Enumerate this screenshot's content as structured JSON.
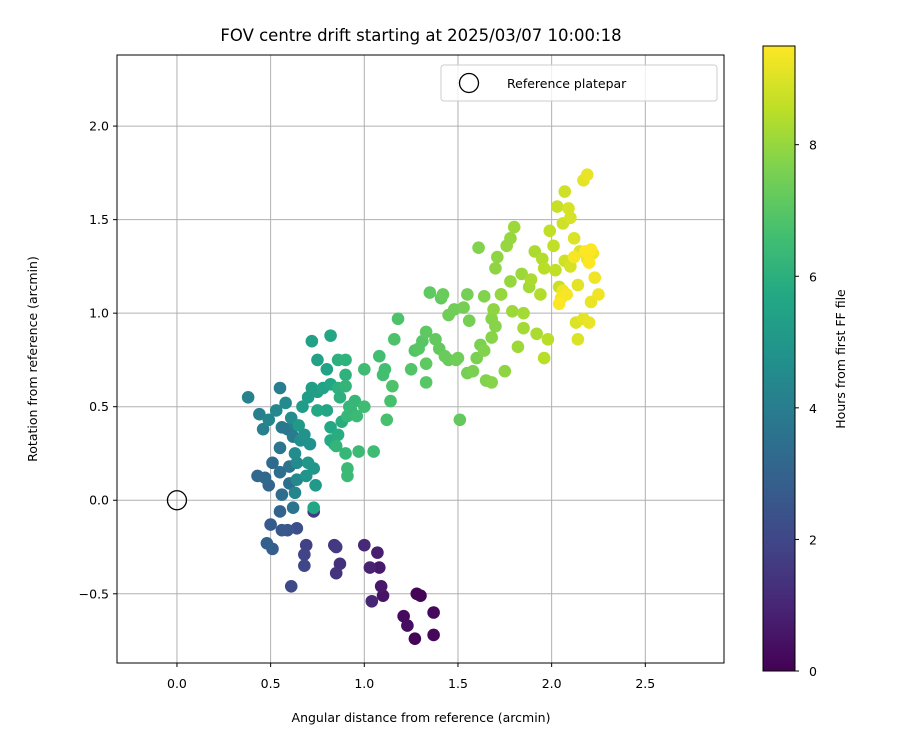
{
  "chart_data": {
    "type": "scatter",
    "title": "FOV centre drift starting at 2025/03/07 10:00:18",
    "xlabel": "Angular distance from reference (arcmin)",
    "ylabel": "Rotation from reference (arcmin)",
    "xlim": [
      -0.32,
      2.92
    ],
    "ylim": [
      -0.87,
      2.38
    ],
    "x_ticks": [
      "0.0",
      "0.5",
      "1.0",
      "1.5",
      "2.0",
      "2.5"
    ],
    "x_tick_values": [
      0,
      0.5,
      1.0,
      1.5,
      2.0,
      2.5
    ],
    "y_ticks": [
      "−0.5",
      "0.0",
      "0.5",
      "1.0",
      "1.5",
      "2.0"
    ],
    "y_tick_values": [
      -0.5,
      0,
      0.5,
      1.0,
      1.5,
      2.0
    ],
    "grid": true,
    "legend": {
      "position": "top-right",
      "entries": [
        "Reference platepar"
      ]
    },
    "reference_point": {
      "x": 0.0,
      "y": 0.0,
      "label": "Reference platepar"
    },
    "colorbar": {
      "label": "Hours from first FF file",
      "min": 0,
      "max": 9.5,
      "ticks": [
        "0",
        "2",
        "4",
        "6",
        "8"
      ],
      "tick_values": [
        0,
        2,
        4,
        6,
        8
      ],
      "colormap": "viridis"
    },
    "points": [
      [
        1.3,
        -0.51,
        0.1
      ],
      [
        1.28,
        -0.5,
        0.1
      ],
      [
        1.27,
        -0.74,
        0.1
      ],
      [
        1.37,
        -0.72,
        0.2
      ],
      [
        1.37,
        -0.6,
        0.2
      ],
      [
        1.21,
        -0.62,
        0.3
      ],
      [
        1.23,
        -0.67,
        0.35
      ],
      [
        1.1,
        -0.51,
        0.5
      ],
      [
        1.09,
        -0.46,
        0.6
      ],
      [
        1.08,
        -0.36,
        0.7
      ],
      [
        1.07,
        -0.28,
        0.8
      ],
      [
        1.03,
        -0.36,
        0.9
      ],
      [
        1.04,
        -0.54,
        1.0
      ],
      [
        1.0,
        -0.24,
        1.1
      ],
      [
        0.87,
        -0.34,
        1.3
      ],
      [
        0.85,
        -0.39,
        1.4
      ],
      [
        0.84,
        -0.24,
        1.5
      ],
      [
        0.85,
        -0.25,
        1.6
      ],
      [
        0.73,
        -0.06,
        1.7
      ],
      [
        0.69,
        -0.24,
        1.8
      ],
      [
        0.68,
        -0.29,
        1.9
      ],
      [
        0.68,
        -0.35,
        2.0
      ],
      [
        0.61,
        -0.46,
        2.1
      ],
      [
        0.64,
        -0.15,
        2.3
      ],
      [
        0.59,
        -0.16,
        2.5
      ],
      [
        0.56,
        -0.16,
        2.6
      ],
      [
        0.5,
        -0.13,
        2.7
      ],
      [
        0.51,
        -0.26,
        2.8
      ],
      [
        0.48,
        -0.23,
        2.9
      ],
      [
        0.55,
        -0.06,
        3.0
      ],
      [
        0.49,
        0.08,
        3.1
      ],
      [
        0.43,
        0.13,
        3.2
      ],
      [
        0.47,
        0.12,
        3.2
      ],
      [
        0.51,
        0.2,
        3.3
      ],
      [
        0.55,
        0.15,
        3.4
      ],
      [
        0.56,
        0.03,
        3.4
      ],
      [
        0.6,
        0.09,
        3.5
      ],
      [
        0.62,
        -0.04,
        3.6
      ],
      [
        0.6,
        0.18,
        3.6
      ],
      [
        0.55,
        0.28,
        3.7
      ],
      [
        0.56,
        0.39,
        3.8
      ],
      [
        0.59,
        0.38,
        3.8
      ],
      [
        0.62,
        0.34,
        3.9
      ],
      [
        0.63,
        0.4,
        4.0
      ],
      [
        0.55,
        0.6,
        4.0
      ],
      [
        0.46,
        0.38,
        4.1
      ],
      [
        0.44,
        0.46,
        4.1
      ],
      [
        0.38,
        0.55,
        4.2
      ],
      [
        0.49,
        0.43,
        4.3
      ],
      [
        0.53,
        0.48,
        4.4
      ],
      [
        0.58,
        0.52,
        4.5
      ],
      [
        0.61,
        0.44,
        4.6
      ],
      [
        0.63,
        0.04,
        4.3
      ],
      [
        0.64,
        0.11,
        4.4
      ],
      [
        0.64,
        0.2,
        4.5
      ],
      [
        0.63,
        0.25,
        4.6
      ],
      [
        0.66,
        0.32,
        4.7
      ],
      [
        0.68,
        0.35,
        4.8
      ],
      [
        0.71,
        0.3,
        4.8
      ],
      [
        0.69,
        0.13,
        4.9
      ],
      [
        0.7,
        0.2,
        5.0
      ],
      [
        0.73,
        0.17,
        5.0
      ],
      [
        0.74,
        0.08,
        5.1
      ],
      [
        0.65,
        0.4,
        5.1
      ],
      [
        0.67,
        0.5,
        5.2
      ],
      [
        0.7,
        0.55,
        5.2
      ],
      [
        0.72,
        0.6,
        5.3
      ],
      [
        0.75,
        0.58,
        5.3
      ],
      [
        0.72,
        0.85,
        5.4
      ],
      [
        0.75,
        0.75,
        5.4
      ],
      [
        0.78,
        0.6,
        5.5
      ],
      [
        0.8,
        0.7,
        5.5
      ],
      [
        0.82,
        0.88,
        5.6
      ],
      [
        0.82,
        0.62,
        5.6
      ],
      [
        0.8,
        0.48,
        5.6
      ],
      [
        0.75,
        0.48,
        5.7
      ],
      [
        0.73,
        -0.04,
        5.6
      ],
      [
        0.82,
        0.39,
        5.7
      ],
      [
        0.82,
        0.32,
        5.8
      ],
      [
        0.84,
        0.3,
        5.8
      ],
      [
        0.86,
        0.35,
        5.9
      ],
      [
        0.88,
        0.42,
        5.9
      ],
      [
        0.87,
        0.55,
        6.0
      ],
      [
        0.86,
        0.6,
        6.0
      ],
      [
        0.86,
        0.75,
        6.0
      ],
      [
        0.9,
        0.75,
        6.1
      ],
      [
        0.9,
        0.67,
        6.1
      ],
      [
        0.9,
        0.61,
        6.2
      ],
      [
        0.92,
        0.5,
        6.2
      ],
      [
        0.91,
        0.45,
        6.3
      ],
      [
        0.93,
        0.48,
        6.3
      ],
      [
        0.95,
        0.53,
        6.3
      ],
      [
        0.96,
        0.45,
        6.4
      ],
      [
        0.97,
        0.26,
        6.4
      ],
      [
        0.9,
        0.25,
        6.3
      ],
      [
        0.91,
        0.17,
        6.4
      ],
      [
        0.91,
        0.13,
        6.4
      ],
      [
        0.85,
        0.29,
        6.2
      ],
      [
        1.0,
        0.5,
        6.5
      ],
      [
        1.05,
        0.26,
        6.5
      ],
      [
        1.0,
        0.7,
        6.5
      ],
      [
        1.08,
        0.77,
        6.6
      ],
      [
        1.1,
        0.67,
        6.6
      ],
      [
        1.11,
        0.7,
        6.6
      ],
      [
        1.12,
        0.43,
        6.7
      ],
      [
        1.14,
        0.53,
        6.7
      ],
      [
        1.15,
        0.61,
        6.8
      ],
      [
        1.16,
        0.86,
        6.8
      ],
      [
        1.18,
        0.97,
        6.8
      ],
      [
        1.25,
        0.7,
        6.9
      ],
      [
        1.27,
        0.8,
        6.9
      ],
      [
        1.29,
        0.81,
        7.0
      ],
      [
        1.31,
        0.85,
        7.0
      ],
      [
        1.33,
        0.63,
        7.0
      ],
      [
        1.33,
        0.9,
        7.1
      ],
      [
        1.35,
        1.11,
        7.1
      ],
      [
        1.33,
        0.73,
        7.1
      ],
      [
        1.38,
        0.86,
        7.2
      ],
      [
        1.4,
        0.81,
        7.2
      ],
      [
        1.41,
        1.08,
        7.2
      ],
      [
        1.42,
        1.1,
        7.3
      ],
      [
        1.43,
        0.77,
        7.3
      ],
      [
        1.45,
        0.75,
        7.3
      ],
      [
        1.45,
        0.99,
        7.4
      ],
      [
        1.49,
        0.75,
        7.4
      ],
      [
        1.5,
        0.76,
        7.4
      ],
      [
        1.48,
        1.02,
        7.4
      ],
      [
        1.53,
        1.03,
        7.5
      ],
      [
        1.51,
        0.43,
        7.2
      ],
      [
        1.55,
        1.1,
        7.5
      ],
      [
        1.56,
        0.96,
        7.5
      ],
      [
        1.55,
        0.68,
        7.5
      ],
      [
        1.58,
        0.69,
        7.6
      ],
      [
        1.6,
        0.76,
        7.6
      ],
      [
        1.62,
        0.83,
        7.6
      ],
      [
        1.64,
        0.8,
        7.7
      ],
      [
        1.61,
        1.35,
        7.7
      ],
      [
        1.64,
        1.09,
        7.7
      ],
      [
        1.65,
        0.64,
        7.7
      ],
      [
        1.68,
        0.63,
        7.8
      ],
      [
        1.68,
        0.87,
        7.8
      ],
      [
        1.68,
        0.97,
        7.8
      ],
      [
        1.7,
        0.93,
        7.8
      ],
      [
        1.69,
        1.02,
        7.9
      ],
      [
        1.7,
        1.24,
        7.9
      ],
      [
        1.71,
        1.3,
        7.9
      ],
      [
        1.73,
        1.1,
        7.9
      ],
      [
        1.73,
        1.1,
        8.0
      ],
      [
        1.75,
        0.69,
        7.9
      ],
      [
        1.76,
        1.36,
        8.0
      ],
      [
        1.78,
        1.4,
        8.0
      ],
      [
        1.78,
        1.17,
        8.0
      ],
      [
        1.8,
        1.46,
        8.1
      ],
      [
        1.79,
        1.01,
        8.1
      ],
      [
        1.82,
        0.82,
        8.1
      ],
      [
        1.84,
        1.21,
        8.1
      ],
      [
        1.85,
        0.92,
        8.2
      ],
      [
        1.85,
        1.0,
        8.2
      ],
      [
        1.88,
        1.14,
        8.2
      ],
      [
        1.89,
        1.18,
        8.3
      ],
      [
        1.91,
        1.33,
        8.3
      ],
      [
        1.92,
        0.89,
        8.3
      ],
      [
        1.94,
        1.1,
        8.4
      ],
      [
        1.95,
        1.29,
        8.4
      ],
      [
        1.96,
        1.24,
        8.5
      ],
      [
        1.96,
        0.76,
        8.5
      ],
      [
        1.98,
        0.86,
        8.5
      ],
      [
        1.99,
        1.44,
        8.6
      ],
      [
        2.01,
        1.36,
        8.6
      ],
      [
        2.02,
        1.23,
        8.6
      ],
      [
        2.03,
        1.57,
        8.7
      ],
      [
        2.04,
        1.14,
        8.7
      ],
      [
        2.06,
        1.48,
        8.8
      ],
      [
        2.07,
        1.65,
        8.8
      ],
      [
        2.07,
        1.28,
        8.8
      ],
      [
        2.09,
        1.56,
        8.9
      ],
      [
        2.1,
        1.25,
        8.9
      ],
      [
        2.1,
        1.51,
        8.9
      ],
      [
        2.12,
        1.4,
        9.0
      ],
      [
        2.13,
        0.95,
        9.0
      ],
      [
        2.14,
        0.86,
        9.0
      ],
      [
        2.15,
        1.33,
        9.0
      ],
      [
        2.14,
        1.15,
        9.1
      ],
      [
        2.17,
        0.97,
        9.1
      ],
      [
        2.17,
        1.71,
        9.1
      ],
      [
        2.19,
        1.74,
        9.2
      ],
      [
        2.19,
        1.29,
        9.2
      ],
      [
        2.2,
        0.95,
        9.2
      ],
      [
        2.21,
        1.06,
        9.2
      ],
      [
        2.22,
        1.32,
        9.3
      ],
      [
        2.23,
        1.19,
        9.3
      ],
      [
        2.25,
        1.1,
        9.3
      ],
      [
        2.06,
        1.12,
        9.3
      ],
      [
        2.05,
        1.08,
        9.4
      ],
      [
        2.08,
        1.1,
        9.4
      ],
      [
        2.12,
        1.3,
        9.4
      ],
      [
        2.18,
        1.33,
        9.5
      ],
      [
        2.2,
        1.27,
        9.5
      ],
      [
        2.21,
        1.34,
        9.5
      ],
      [
        2.04,
        1.05,
        9.5
      ]
    ]
  }
}
